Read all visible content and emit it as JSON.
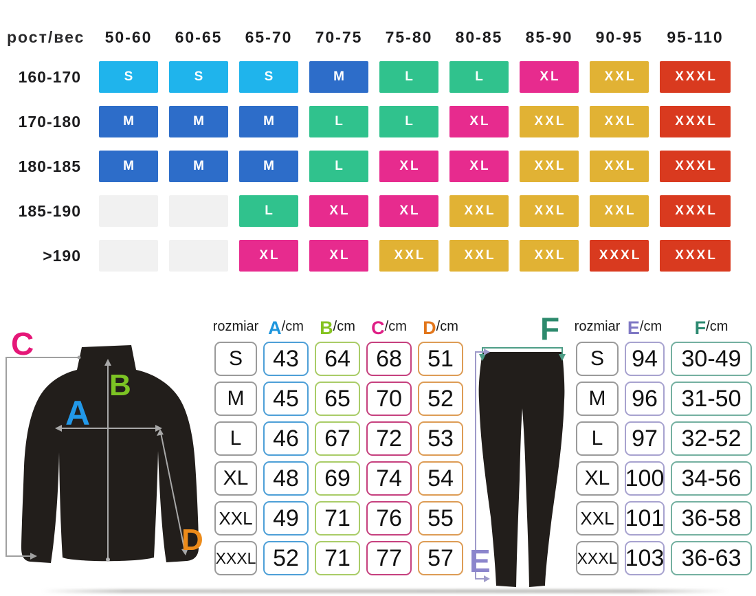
{
  "chart_data": [
    {
      "id": "height_weight_size_matrix",
      "type": "table",
      "corner_header": "рост/вес",
      "columns": [
        "50-60",
        "60-65",
        "65-70",
        "70-75",
        "75-80",
        "80-85",
        "85-90",
        "90-95",
        "95-110"
      ],
      "rows": [
        {
          "label": "160-170",
          "values": [
            "S",
            "S",
            "S",
            "M",
            "L",
            "L",
            "XL",
            "XXL",
            "XXXL"
          ]
        },
        {
          "label": "170-180",
          "values": [
            "M",
            "M",
            "M",
            "L",
            "L",
            "XL",
            "XXL",
            "XXL",
            "XXXL"
          ]
        },
        {
          "label": "180-185",
          "values": [
            "M",
            "M",
            "M",
            "L",
            "XL",
            "XL",
            "XXL",
            "XXL",
            "XXXL"
          ]
        },
        {
          "label": "185-190",
          "values": [
            "",
            "",
            "L",
            "XL",
            "XL",
            "XXL",
            "XXL",
            "XXL",
            "XXXL"
          ]
        },
        {
          "label": ">190",
          "values": [
            "",
            "",
            "XL",
            "XL",
            "XXL",
            "XXL",
            "XXL",
            "XXXL",
            "XXXL"
          ]
        }
      ],
      "cell_colors": {
        "S": "#1fb4ec",
        "M": "#2d6dc9",
        "L": "#30c28d",
        "XL": "#e72b8e",
        "XXL": "#e1b234",
        "XXXL": "#d93a1f",
        "empty": "#f1f1f1"
      }
    },
    {
      "id": "top_garment_measurements",
      "type": "table",
      "size_header": "rozmiar",
      "columns": [
        {
          "letter": "A",
          "unit": "/cm",
          "letter_color": "#1e96dd",
          "border_color": "#4d9fd7"
        },
        {
          "letter": "B",
          "unit": "/cm",
          "letter_color": "#85c320",
          "border_color": "#a9cc67"
        },
        {
          "letter": "C",
          "unit": "/cm",
          "letter_color": "#df1f86",
          "border_color": "#c6407e"
        },
        {
          "letter": "D",
          "unit": "/cm",
          "letter_color": "#e2761b",
          "border_color": "#dd9c55"
        }
      ],
      "rows": [
        {
          "size": "S",
          "values": [
            "43",
            "64",
            "68",
            "51"
          ]
        },
        {
          "size": "M",
          "values": [
            "45",
            "65",
            "70",
            "52"
          ]
        },
        {
          "size": "L",
          "values": [
            "46",
            "67",
            "72",
            "53"
          ]
        },
        {
          "size": "XL",
          "values": [
            "48",
            "69",
            "74",
            "54"
          ]
        },
        {
          "size": "XXL",
          "values": [
            "49",
            "71",
            "76",
            "55"
          ]
        },
        {
          "size": "XXXL",
          "values": [
            "52",
            "71",
            "77",
            "57"
          ]
        }
      ]
    },
    {
      "id": "bottom_garment_measurements",
      "type": "table",
      "size_header": "rozmiar",
      "columns": [
        {
          "letter": "E",
          "unit": "/cm",
          "letter_color": "#7f78c4",
          "border_color": "#a7a2cf"
        },
        {
          "letter": "F",
          "unit": "/cm",
          "letter_color": "#2d8a71",
          "border_color": "#74b0a0"
        }
      ],
      "rows": [
        {
          "size": "S",
          "values": [
            "94",
            "30-49"
          ]
        },
        {
          "size": "M",
          "values": [
            "96",
            "31-50"
          ]
        },
        {
          "size": "L",
          "values": [
            "97",
            "32-52"
          ]
        },
        {
          "size": "XL",
          "values": [
            "100",
            "34-56"
          ]
        },
        {
          "size": "XXL",
          "values": [
            "101",
            "36-58"
          ]
        },
        {
          "size": "XXXL",
          "values": [
            "103",
            "36-63"
          ]
        }
      ]
    }
  ],
  "diagrams": {
    "shirt": {
      "labels": [
        {
          "text": "A",
          "color": "#2298e8"
        },
        {
          "text": "B",
          "color": "#7cc324"
        },
        {
          "text": "C",
          "color": "#e51778"
        },
        {
          "text": "D",
          "color": "#ec8b1a"
        }
      ]
    },
    "pants": {
      "labels": [
        {
          "text": "E",
          "color": "#8c86cc"
        },
        {
          "text": "F",
          "color": "#2d8a6d"
        }
      ]
    }
  }
}
